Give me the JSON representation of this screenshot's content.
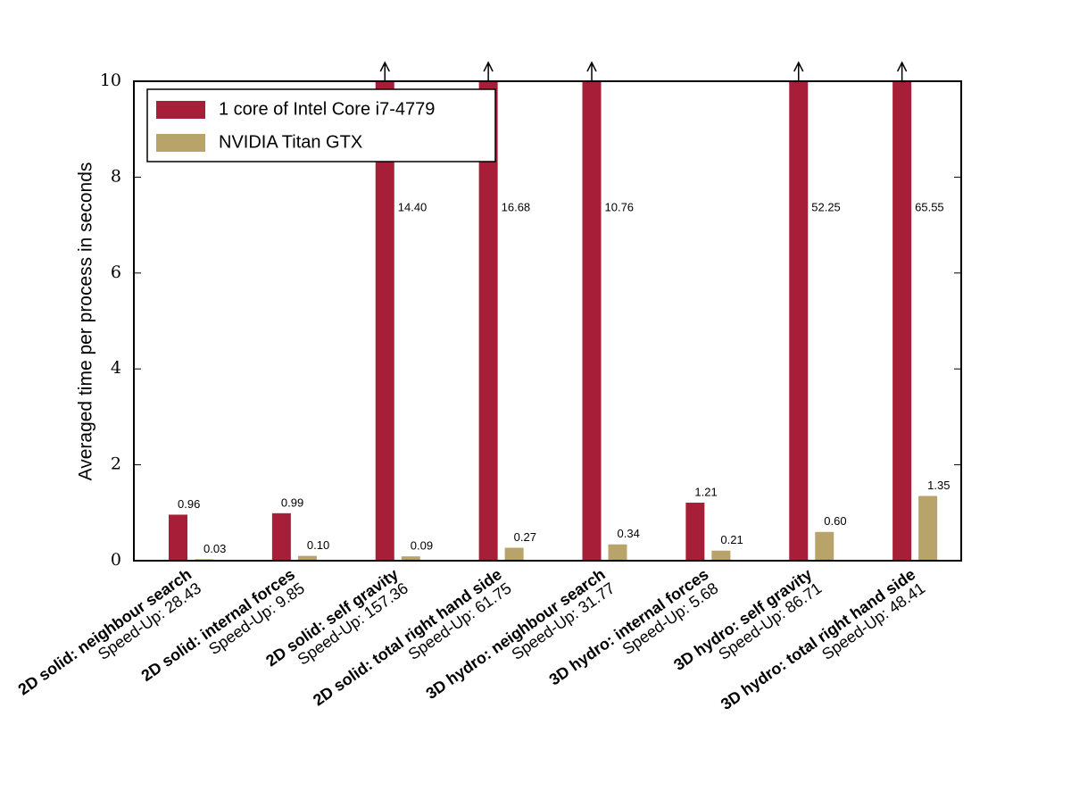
{
  "chart_data": {
    "type": "bar",
    "y_label": "Averaged time per process in seconds",
    "categories": [
      "2D solid: neighbour search",
      "2D solid: internal forces",
      "2D solid: self gravity",
      "2D solid: total right hand side",
      "3D hydro: neighbour search",
      "3D hydro: internal forces",
      "3D hydro: self gravity",
      "3D hydro: total right hand side"
    ],
    "category_notes": [
      "Speed-Up: 28.43",
      "Speed-Up: 9.85",
      "Speed-Up: 157.36",
      "Speed-Up: 61.75",
      "Speed-Up: 31.77",
      "Speed-Up: 5.68",
      "Speed-Up: 86.71",
      "Speed-Up: 48.41"
    ],
    "series": [
      {
        "name": "1 core of Intel Core i7-4779",
        "color": "#a61e38",
        "values": [
          0.96,
          0.99,
          14.4,
          16.68,
          10.76,
          1.21,
          52.25,
          65.55
        ],
        "value_labels": [
          "0.96",
          "0.99",
          "14.40",
          "16.68",
          "10.76",
          "1.21",
          "52.25",
          "65.55"
        ]
      },
      {
        "name": "NVIDIA Titan GTX",
        "color": "#b8a46a",
        "values": [
          0.03,
          0.1,
          0.09,
          0.27,
          0.34,
          0.21,
          0.6,
          1.35
        ],
        "value_labels": [
          "0.03",
          "0.10",
          "0.09",
          "0.27",
          "0.34",
          "0.21",
          "0.60",
          "1.35"
        ]
      }
    ],
    "ylim": [
      0,
      10
    ],
    "yticks": [
      0,
      2,
      4,
      6,
      8,
      10
    ],
    "legend": "upper left"
  }
}
